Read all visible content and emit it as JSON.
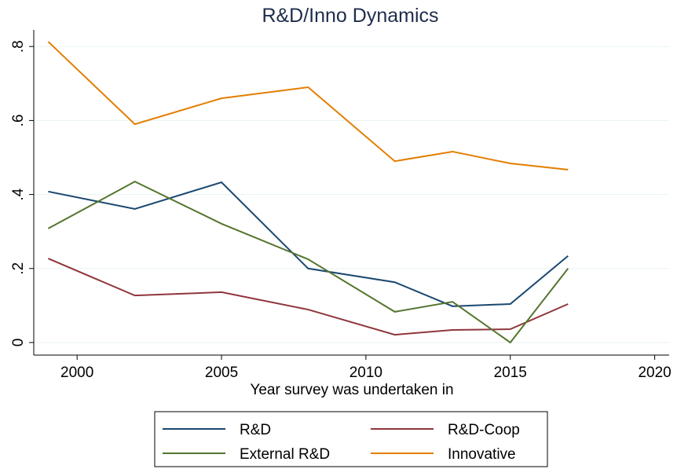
{
  "chart_data": {
    "type": "line",
    "title": "R&D/Inno Dynamics",
    "xlabel": "Year survey was undertaken in",
    "x": [
      1999,
      2002,
      2005,
      2008,
      2011,
      2013,
      2015,
      2017
    ],
    "series": [
      {
        "name": "R&D",
        "color": "#1a476f",
        "values": [
          0.408,
          0.361,
          0.433,
          0.2,
          0.163,
          0.098,
          0.104,
          0.234
        ]
      },
      {
        "name": "R&D-Coop",
        "color": "#90353b",
        "values": [
          0.227,
          0.127,
          0.136,
          0.089,
          0.021,
          0.034,
          0.036,
          0.104
        ]
      },
      {
        "name": "External R&D",
        "color": "#55752f",
        "values": [
          0.308,
          0.435,
          0.321,
          0.225,
          0.083,
          0.11,
          0,
          0.2
        ]
      },
      {
        "name": "Innovative",
        "color": "#e37e00",
        "values": [
          0.813,
          0.59,
          0.66,
          0.69,
          0.49,
          0.516,
          0.484,
          0.467
        ]
      }
    ],
    "xlim": [
      1998.5,
      2020.5
    ],
    "xticks": [
      2000,
      2005,
      2010,
      2015,
      2020
    ],
    "ylim": [
      -0.034,
      0.845
    ],
    "yticks": [
      0,
      {
        "value": 0.2,
        "label": ".2"
      },
      {
        "value": 0.4,
        "label": ".4"
      },
      {
        "value": 0.6,
        "label": ".6"
      },
      {
        "value": 0.8,
        "label": ".8"
      }
    ],
    "grid": true,
    "legend": "bottom"
  }
}
